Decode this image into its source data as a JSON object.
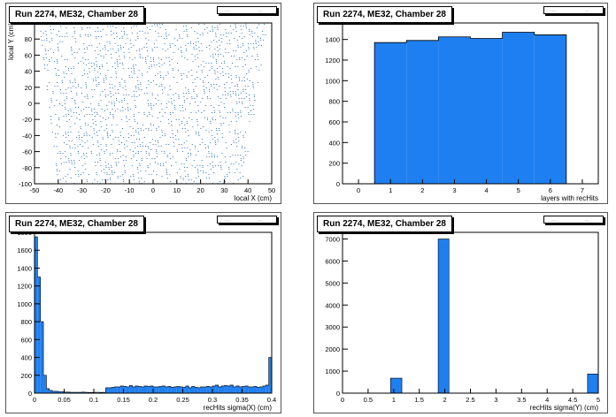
{
  "colors": {
    "fill": "#1e7ff0",
    "stroke": "#000000",
    "dot": "#2a6fb5"
  },
  "pads": [
    {
      "title": "Run 2274, ME32, Chamber 28",
      "chart_data": {
        "type": "scatter",
        "xlabel": "local X (cm)",
        "ylabel": "local Y (cm)",
        "xlim": [
          -50,
          50
        ],
        "ylim": [
          -100,
          100
        ],
        "xticks": [
          "-50",
          "-40",
          "-30",
          "-20",
          "-10",
          "0",
          "10",
          "20",
          "30",
          "40",
          "50"
        ],
        "yticks": [
          "-100",
          "-80",
          "-60",
          "-40",
          "-20",
          "0",
          "20",
          "40",
          "60",
          "80"
        ],
        "x_extent_at_ymin": [
          -40,
          38
        ],
        "x_extent_at_ymax": [
          -48,
          48
        ]
      }
    },
    {
      "title": "Run 2274, ME32, Chamber 28",
      "chart_data": {
        "type": "bar",
        "xlabel": "layers with recHits",
        "ylabel": "",
        "xlim": [
          -0.5,
          7.5
        ],
        "ylim": [
          0,
          1560
        ],
        "xticks": [
          "0",
          "1",
          "2",
          "3",
          "4",
          "5",
          "6",
          "7"
        ],
        "yticks": [
          "0",
          "200",
          "400",
          "600",
          "800",
          "1000",
          "1200",
          "1400"
        ],
        "x": [
          1,
          2,
          3,
          4,
          5,
          6
        ],
        "values": [
          1370,
          1390,
          1425,
          1410,
          1470,
          1445
        ]
      }
    },
    {
      "title": "Run 2274, ME32, Chamber 28",
      "chart_data": {
        "type": "bar",
        "xlabel": "recHits sigma(X) (cm)",
        "ylabel": "",
        "xlim": [
          0,
          0.4
        ],
        "ylim": [
          0,
          1800
        ],
        "xticks": [
          "0",
          "0.05",
          "0.1",
          "0.15",
          "0.2",
          "0.25",
          "0.3",
          "0.35",
          "0.4"
        ],
        "yticks": [
          "0",
          "200",
          "400",
          "600",
          "800",
          "1000",
          "1200",
          "1400",
          "1600",
          "1800"
        ],
        "bin_width": 0.005,
        "values": [
          1750,
          1300,
          800,
          200,
          50,
          30,
          20,
          20,
          15,
          15,
          12,
          12,
          10,
          10,
          10,
          10,
          12,
          10,
          8,
          8,
          10,
          10,
          8,
          10,
          60,
          60,
          65,
          70,
          70,
          80,
          75,
          70,
          85,
          70,
          80,
          75,
          70,
          80,
          75,
          80,
          70,
          70,
          75,
          80,
          70,
          75,
          65,
          70,
          75,
          70,
          65,
          80,
          60,
          75,
          65,
          60,
          70,
          70,
          75,
          70,
          80,
          90,
          70,
          80,
          85,
          80,
          90,
          70,
          80,
          70,
          75,
          80,
          70,
          70,
          75,
          65,
          70,
          80,
          90,
          400
        ]
      }
    },
    {
      "title": "Run 2274, ME32, Chamber 28",
      "chart_data": {
        "type": "bar",
        "xlabel": "recHits sigma(Y) (cm)",
        "ylabel": "",
        "xlim": [
          0,
          5
        ],
        "ylim": [
          0,
          7300
        ],
        "xticks": [
          "0",
          "0.5",
          "1",
          "1.5",
          "2",
          "2.5",
          "3",
          "3.5",
          "4",
          "4.5",
          "5"
        ],
        "yticks": [
          "0",
          "1000",
          "2000",
          "3000",
          "4000",
          "5000",
          "6000",
          "7000"
        ],
        "bins": [
          {
            "x0": 0.94,
            "x1": 1.16,
            "value": 680
          },
          {
            "x0": 1.87,
            "x1": 2.08,
            "value": 7000
          },
          {
            "x0": 4.79,
            "x1": 5.0,
            "value": 870
          }
        ]
      }
    }
  ]
}
